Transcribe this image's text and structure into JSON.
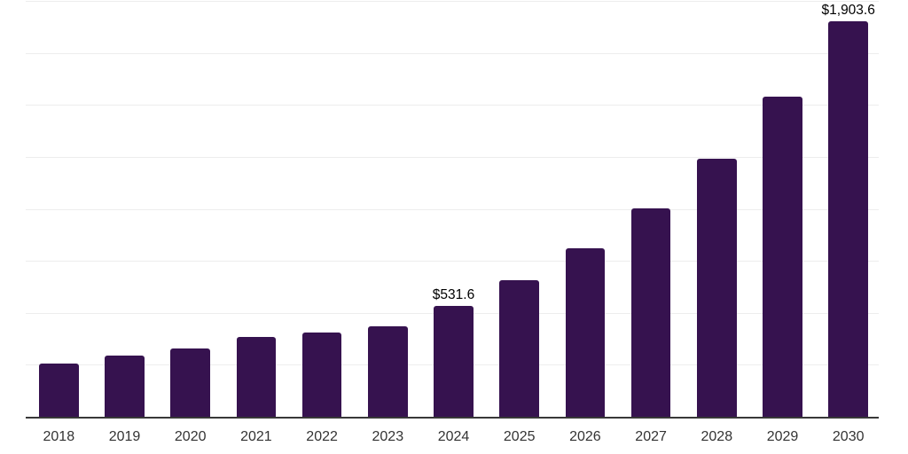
{
  "chart_data": {
    "type": "bar",
    "title": "",
    "xlabel": "",
    "ylabel": "",
    "categories": [
      "2018",
      "2019",
      "2020",
      "2021",
      "2022",
      "2023",
      "2024",
      "2025",
      "2026",
      "2027",
      "2028",
      "2029",
      "2030"
    ],
    "values": [
      256.4,
      292.6,
      326.8,
      383.7,
      405.8,
      437.1,
      531.6,
      655.0,
      808.9,
      1002.7,
      1239.8,
      1538.4,
      1903.6
    ],
    "data_labels": [
      null,
      null,
      null,
      null,
      null,
      null,
      "$531.6",
      null,
      null,
      null,
      null,
      null,
      "$1,903.6"
    ],
    "ylim": [
      0,
      2000
    ],
    "grid_step": 250,
    "grid": "horizontal",
    "y_axis_labels_shown": false,
    "legend": "none",
    "bar_color": "#36124F",
    "grid_color": "#EDEDED",
    "axis_color": "#383838",
    "tick_label_color": "#333333",
    "data_label_color": "#000000"
  }
}
